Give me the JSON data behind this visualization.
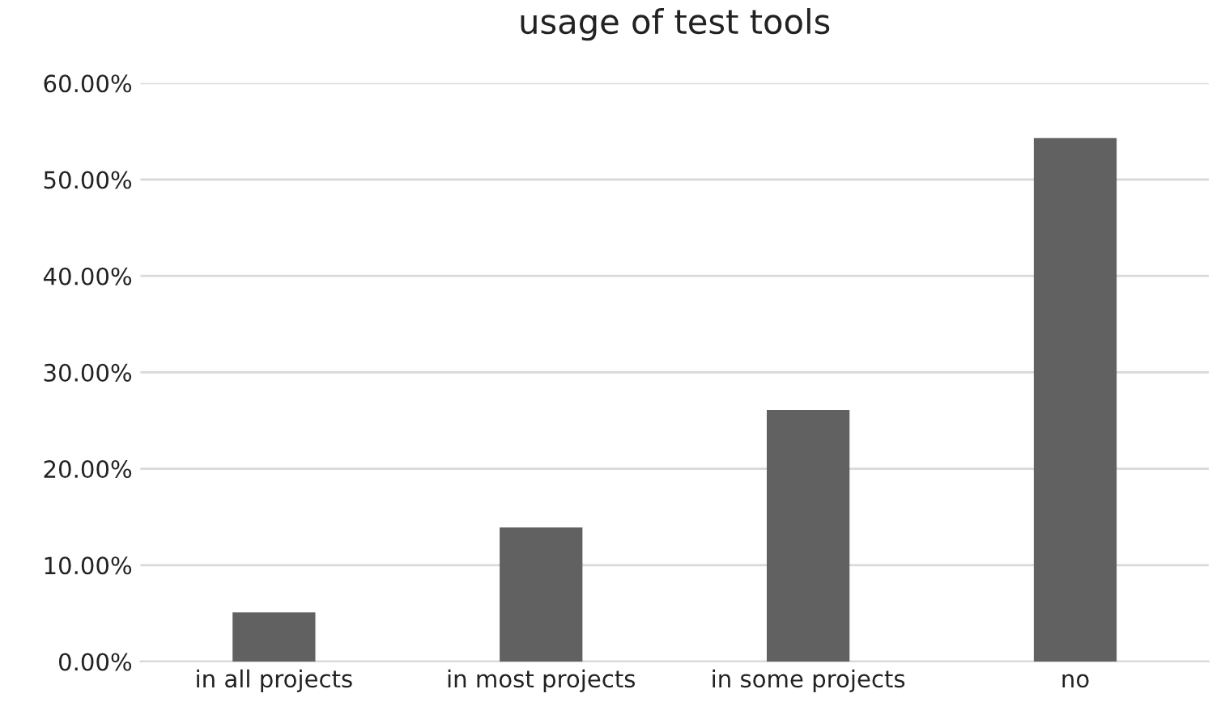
{
  "chart_data": {
    "type": "bar",
    "title": "usage of test tools",
    "categories": [
      "in all projects",
      "in most projects",
      "in some projects",
      "no"
    ],
    "values": [
      5.1,
      13.9,
      26.1,
      54.3
    ],
    "color": "#616161",
    "ylim": [
      0,
      60
    ],
    "yticks": [
      {
        "value": 0,
        "label": "0.00%"
      },
      {
        "value": 10,
        "label": "10.00%"
      },
      {
        "value": 20,
        "label": "20.00%"
      },
      {
        "value": 30,
        "label": "30.00%"
      },
      {
        "value": 40,
        "label": "40.00%"
      },
      {
        "value": 50,
        "label": "50.00%"
      },
      {
        "value": 60,
        "label": "60.00%"
      }
    ],
    "grid": "y"
  }
}
